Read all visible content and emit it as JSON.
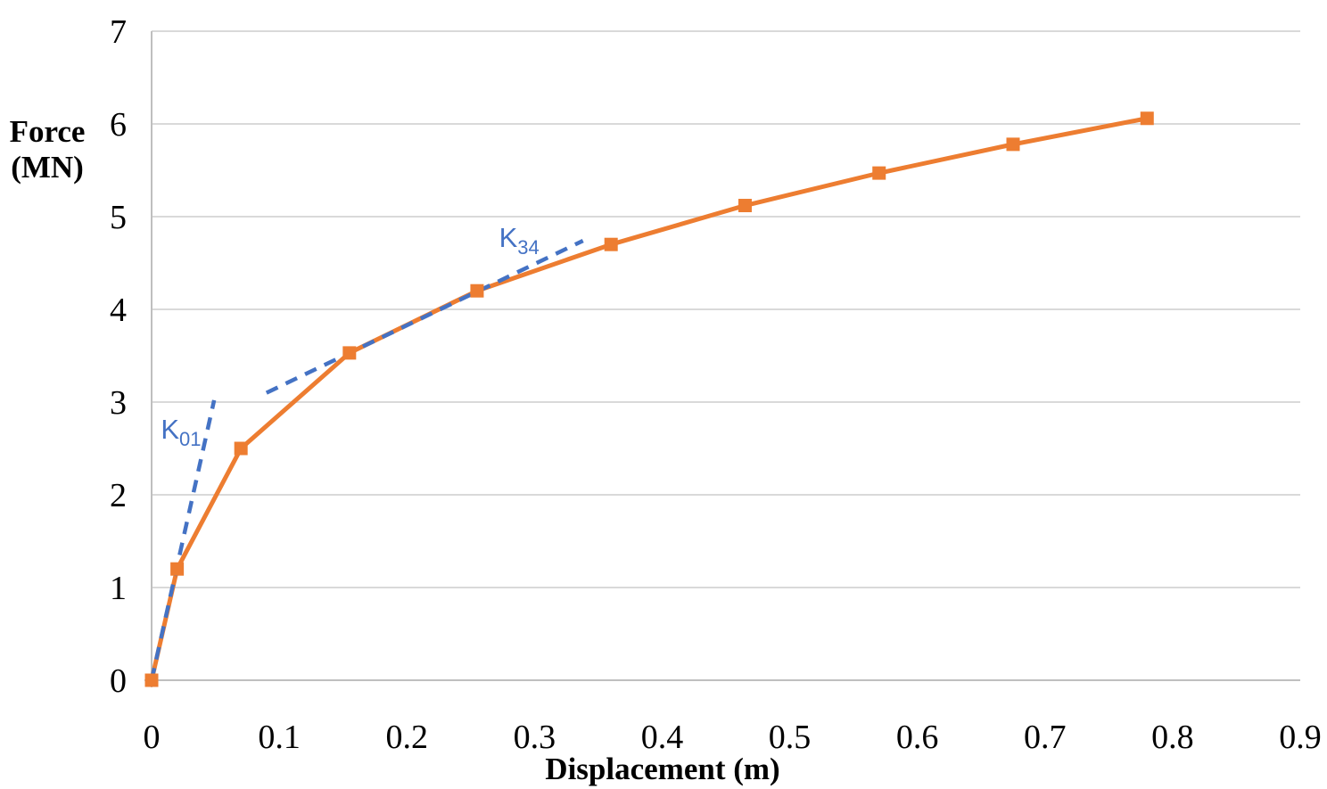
{
  "chart_data": {
    "type": "line",
    "title": "",
    "xlabel": "Displacement (m)",
    "ylabel": "Force (MN)",
    "ylabel_lines": [
      "Force",
      "(MN)"
    ],
    "xlim": [
      0,
      0.9
    ],
    "ylim": [
      0,
      7
    ],
    "x_ticks": [
      0,
      0.1,
      0.2,
      0.3,
      0.4,
      0.5,
      0.6,
      0.7,
      0.8,
      0.9
    ],
    "x_tick_labels": [
      "0",
      "0.1",
      "0.2",
      "0.3",
      "0.4",
      "0.5",
      "0.6",
      "0.7",
      "0.8",
      "0.9"
    ],
    "y_ticks": [
      0,
      1,
      2,
      3,
      4,
      5,
      6,
      7
    ],
    "y_tick_labels": [
      "0",
      "1",
      "2",
      "3",
      "4",
      "5",
      "6",
      "7"
    ],
    "grid": "horizontal",
    "legend": "none",
    "series": [
      {
        "name": "force-displacement-curve",
        "style": "solid",
        "marker": "square",
        "color": "#ED7D31",
        "points": [
          [
            0,
            0
          ],
          [
            0.02,
            1.2
          ],
          [
            0.07,
            2.5
          ],
          [
            0.155,
            3.53
          ],
          [
            0.255,
            4.2
          ],
          [
            0.36,
            4.7
          ],
          [
            0.465,
            5.12
          ],
          [
            0.57,
            5.47
          ],
          [
            0.675,
            5.78
          ],
          [
            0.78,
            6.06
          ]
        ]
      },
      {
        "name": "K01-secant-stiffness-line",
        "style": "dashed",
        "marker": "none",
        "color": "#4472C4",
        "points": [
          [
            0,
            0
          ],
          [
            0.049,
            3.02
          ]
        ]
      },
      {
        "name": "K34-secant-stiffness-line",
        "style": "dashed",
        "marker": "none",
        "color": "#4472C4",
        "points": [
          [
            0.09,
            3.1
          ],
          [
            0.338,
            4.74
          ]
        ]
      }
    ],
    "annotations": [
      {
        "name": "K01-label",
        "base": "K",
        "sub": "01",
        "x": 0.023,
        "y": 2.7,
        "color": "#4472C4"
      },
      {
        "name": "K34-label",
        "base": "K",
        "sub": "34",
        "x": 0.288,
        "y": 4.77,
        "color": "#4472C4"
      }
    ],
    "colors": {
      "grid": "#D9D9D9",
      "axis": "#BFBFBF",
      "text": "#000000",
      "series_orange": "#ED7D31",
      "series_blue": "#4472C4"
    }
  }
}
